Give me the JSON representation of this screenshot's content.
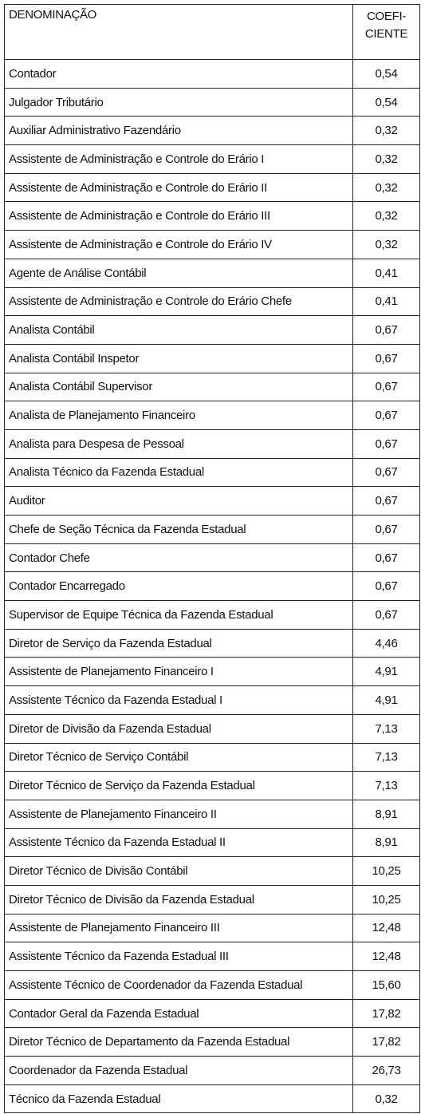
{
  "table": {
    "header": [
      "DENOMINAÇÃO",
      "COEFI-\nCIENTE"
    ],
    "rows": [
      [
        "Contador",
        "0,54"
      ],
      [
        "Julgador Tributário",
        "0,54"
      ],
      [
        "Auxiliar Administrativo Fazendário",
        "0,32"
      ],
      [
        "Assistente de Administração e Controle do Erário I",
        "0,32"
      ],
      [
        "Assistente de Administração e Controle do Erário II",
        "0,32"
      ],
      [
        "Assistente de Administração e Controle do Erário III",
        "0,32"
      ],
      [
        "Assistente de Administração e Controle do Erário IV",
        "0,32"
      ],
      [
        "Agente de Análise Contábil",
        "0,41"
      ],
      [
        "Assistente de Administração e Controle do Erário Chefe",
        "0,41"
      ],
      [
        "Analista Contábil",
        "0,67"
      ],
      [
        "Analista Contábil Inspetor",
        "0,67"
      ],
      [
        "Analista Contábil Supervisor",
        "0,67"
      ],
      [
        "Analista de Planejamento Financeiro",
        "0,67"
      ],
      [
        "Analista para Despesa de Pessoal",
        "0,67"
      ],
      [
        "Analista Técnico da Fazenda Estadual",
        "0,67"
      ],
      [
        "Auditor",
        "0,67"
      ],
      [
        "Chefe de Seção Técnica da Fazenda Estadual",
        "0,67"
      ],
      [
        "Contador Chefe",
        "0,67"
      ],
      [
        "Contador Encarregado",
        "0,67"
      ],
      [
        "Supervisor de Equipe Técnica da Fazenda Estadual",
        "0,67"
      ],
      [
        "Diretor de Serviço da Fazenda Estadual",
        "4,46"
      ],
      [
        "Assistente de Planejamento Financeiro I",
        "4,91"
      ],
      [
        "Assistente Técnico da Fazenda Estadual I",
        "4,91"
      ],
      [
        "Diretor de Divisão da Fazenda Estadual",
        "7,13"
      ],
      [
        "Diretor Técnico de Serviço Contábil",
        "7,13"
      ],
      [
        "Diretor Técnico de Serviço da Fazenda Estadual",
        "7,13"
      ],
      [
        "Assistente de Planejamento Financeiro II",
        "8,91"
      ],
      [
        "Assistente Técnico da Fazenda Estadual II",
        "8,91"
      ],
      [
        "Diretor Técnico de Divisão Contábil",
        "10,25"
      ],
      [
        "Diretor Técnico de Divisão da Fazenda Estadual",
        "10,25"
      ],
      [
        "Assistente de Planejamento Financeiro III",
        "12,48"
      ],
      [
        "Assistente Técnico da Fazenda Estadual III",
        "12,48"
      ],
      [
        "Assistente Técnico de Coordenador da Fazenda Estadual",
        "15,60"
      ],
      [
        "Contador Geral da Fazenda Estadual",
        "17,82"
      ],
      [
        "Diretor Técnico de Departamento da Fazenda Estadual",
        "17,82"
      ],
      [
        "Coordenador da Fazenda Estadual",
        "26,73"
      ],
      [
        "Técnico da Fazenda Estadual",
        "0,32"
      ]
    ]
  }
}
